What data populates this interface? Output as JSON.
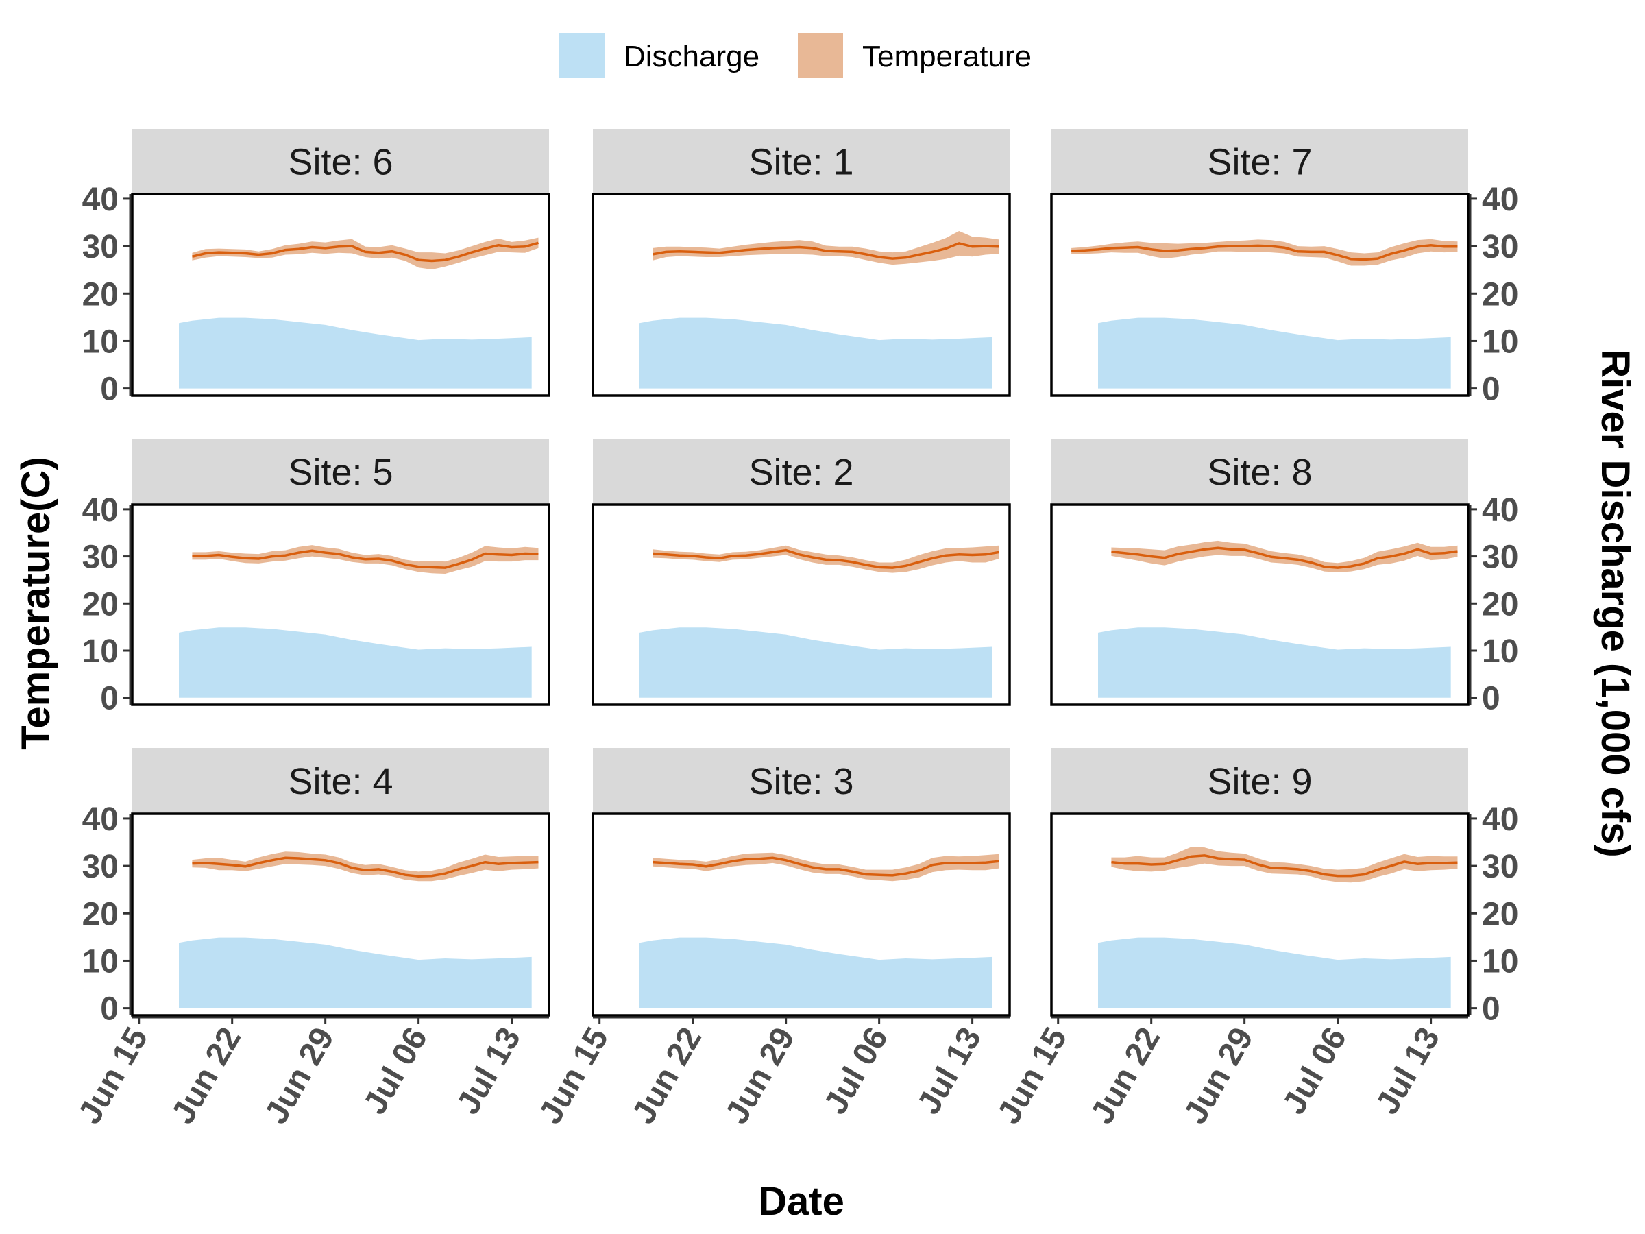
{
  "colors": {
    "discharge_fill": "#bde0f4",
    "temperature_line": "#d95f0e",
    "temperature_band": "#e8b896",
    "strip_background": "#d9d9d9",
    "panel_border": "#000000",
    "tick_text": "#4d4d4d"
  },
  "legend": {
    "placement": "top",
    "items": [
      {
        "label": "Discharge",
        "color": "#bde0f4"
      },
      {
        "label": "Temperature",
        "color": "#e8b896"
      }
    ]
  },
  "chart_data": {
    "type": "area",
    "layout": "faceted 3x3, shared x axis, dual y axes",
    "xlabel": "Date",
    "ylabel_left": "Temperature(C)",
    "ylabel_right": "River Discharge (1,000 cfs)",
    "x_ticks": [
      "Jun 15",
      "Jun 22",
      "Jun 29",
      "Jul 06",
      "Jul 13"
    ],
    "x_tick_values": [
      0,
      7,
      14,
      21,
      28
    ],
    "x_range_days_from_jun15": [
      -0.5,
      30.8
    ],
    "y_ticks": [
      0,
      10,
      20,
      30,
      40
    ],
    "ylim": [
      -1.5,
      41
    ],
    "grid": false,
    "discharge": {
      "name": "Discharge",
      "x": [
        3,
        4,
        6,
        8,
        10,
        12,
        14,
        16,
        18,
        20,
        21,
        23,
        25,
        27,
        29.5
      ],
      "values": [
        13.8,
        14.3,
        14.9,
        14.9,
        14.6,
        14.0,
        13.4,
        12.3,
        11.4,
        10.6,
        10.2,
        10.5,
        10.3,
        10.5,
        10.8
      ]
    },
    "panels": [
      {
        "site": "Site: 6",
        "temperature": {
          "name": "Temperature",
          "x": [
            4,
            5,
            6,
            7,
            8,
            9,
            10,
            11,
            12,
            13,
            14,
            15,
            16,
            17,
            18,
            19,
            20,
            21,
            22,
            23,
            24,
            25,
            26,
            27,
            28,
            29,
            30
          ],
          "values": [
            27.8,
            28.5,
            28.7,
            28.6,
            28.5,
            28.2,
            28.5,
            29.2,
            29.4,
            29.8,
            29.6,
            29.9,
            30.0,
            28.8,
            28.6,
            28.9,
            28.2,
            27.1,
            26.9,
            27.1,
            27.8,
            28.7,
            29.5,
            30.2,
            29.8,
            29.9,
            30.7
          ],
          "band": [
            0.8,
            0.9,
            0.8,
            0.8,
            0.8,
            0.7,
            0.9,
            1.0,
            1.1,
            1.2,
            1.2,
            1.3,
            1.5,
            1.1,
            1.2,
            1.3,
            1.3,
            1.6,
            1.8,
            1.4,
            1.3,
            1.3,
            1.4,
            1.4,
            1.1,
            1.3,
            1.1
          ]
        }
      },
      {
        "site": "Site: 1",
        "temperature": {
          "name": "Temperature",
          "x": [
            4,
            5,
            6,
            7,
            8,
            9,
            10,
            11,
            12,
            13,
            14,
            15,
            16,
            17,
            18,
            19,
            20,
            21,
            22,
            23,
            24,
            25,
            26,
            27,
            28,
            29,
            30
          ],
          "values": [
            28.3,
            28.8,
            28.9,
            28.8,
            28.7,
            28.6,
            28.9,
            29.2,
            29.4,
            29.6,
            29.7,
            29.8,
            29.6,
            29.0,
            28.9,
            28.8,
            28.3,
            27.7,
            27.4,
            27.6,
            28.2,
            28.8,
            29.5,
            30.6,
            29.9,
            30.0,
            29.9
          ],
          "band": [
            1.3,
            1.1,
            1.0,
            1.0,
            1.0,
            0.9,
            1.0,
            1.1,
            1.2,
            1.3,
            1.4,
            1.5,
            1.4,
            1.1,
            1.0,
            1.1,
            1.2,
            1.2,
            1.3,
            1.3,
            1.6,
            1.9,
            2.2,
            2.6,
            2.1,
            1.8,
            1.5
          ]
        }
      },
      {
        "site": "Site: 7",
        "temperature": {
          "name": "Temperature",
          "x": [
            1,
            2,
            3,
            4,
            5,
            6,
            7,
            8,
            9,
            10,
            11,
            12,
            13,
            14,
            15,
            16,
            17,
            18,
            19,
            20,
            21,
            22,
            23,
            24,
            25,
            26,
            27,
            28,
            29,
            30
          ],
          "values": [
            29.0,
            29.1,
            29.3,
            29.6,
            29.7,
            29.8,
            29.3,
            29.0,
            29.1,
            29.4,
            29.6,
            29.9,
            30.0,
            30.0,
            30.1,
            30.0,
            29.7,
            28.9,
            28.8,
            28.8,
            28.1,
            27.3,
            27.2,
            27.4,
            28.4,
            29.1,
            29.9,
            30.2,
            29.9,
            29.9
          ],
          "band": [
            0.6,
            0.7,
            0.8,
            0.9,
            1.1,
            1.2,
            1.4,
            1.6,
            1.4,
            1.2,
            1.1,
            1.0,
            1.1,
            1.2,
            1.3,
            1.3,
            1.2,
            1.1,
            1.1,
            1.2,
            1.3,
            1.4,
            1.3,
            1.3,
            1.4,
            1.5,
            1.4,
            1.3,
            1.2,
            1.1
          ]
        }
      },
      {
        "site": "Site: 5",
        "temperature": {
          "name": "Temperature",
          "x": [
            4,
            5,
            6,
            7,
            8,
            9,
            10,
            11,
            12,
            13,
            14,
            15,
            16,
            17,
            18,
            19,
            20,
            21,
            22,
            23,
            24,
            25,
            26,
            27,
            28,
            29,
            30
          ],
          "values": [
            30.1,
            30.1,
            30.3,
            29.9,
            29.6,
            29.5,
            30.0,
            30.2,
            30.8,
            31.2,
            30.8,
            30.5,
            29.8,
            29.4,
            29.5,
            29.1,
            28.3,
            27.8,
            27.7,
            27.6,
            28.4,
            29.3,
            30.6,
            30.4,
            30.3,
            30.6,
            30.5
          ],
          "band": [
            0.8,
            0.8,
            0.8,
            0.9,
            1.0,
            1.0,
            1.1,
            1.1,
            1.2,
            1.2,
            1.1,
            1.1,
            1.0,
            0.9,
            1.0,
            1.0,
            1.0,
            1.1,
            1.3,
            1.3,
            1.3,
            1.5,
            1.6,
            1.5,
            1.4,
            1.4,
            1.3
          ]
        }
      },
      {
        "site": "Site: 2",
        "temperature": {
          "name": "Temperature",
          "x": [
            4,
            5,
            6,
            7,
            8,
            9,
            10,
            11,
            12,
            13,
            14,
            15,
            16,
            17,
            18,
            19,
            20,
            21,
            22,
            23,
            24,
            25,
            26,
            27,
            28,
            29,
            30
          ],
          "values": [
            30.6,
            30.4,
            30.2,
            30.1,
            29.8,
            29.6,
            30.1,
            30.2,
            30.5,
            30.9,
            31.3,
            30.4,
            29.8,
            29.3,
            29.2,
            28.8,
            28.2,
            27.7,
            27.6,
            28.0,
            28.8,
            29.6,
            30.2,
            30.4,
            30.3,
            30.4,
            30.9
          ],
          "band": [
            0.9,
            0.8,
            0.8,
            0.8,
            0.8,
            0.8,
            0.8,
            0.8,
            0.8,
            0.9,
            1.0,
            1.0,
            1.1,
            1.1,
            1.0,
            1.0,
            1.0,
            1.0,
            1.1,
            1.3,
            1.5,
            1.5,
            1.5,
            1.4,
            1.6,
            1.7,
            1.4
          ]
        }
      },
      {
        "site": "Site: 8",
        "temperature": {
          "name": "Temperature",
          "x": [
            4,
            5,
            6,
            7,
            8,
            9,
            10,
            11,
            12,
            13,
            14,
            15,
            16,
            17,
            18,
            19,
            20,
            21,
            22,
            23,
            24,
            25,
            26,
            27,
            28,
            29,
            30
          ],
          "values": [
            31.0,
            30.7,
            30.4,
            30.0,
            29.7,
            30.5,
            31.0,
            31.5,
            31.8,
            31.5,
            31.4,
            30.7,
            29.9,
            29.6,
            29.3,
            28.7,
            27.8,
            27.6,
            27.9,
            28.5,
            29.6,
            30.0,
            30.6,
            31.5,
            30.6,
            30.7,
            31.1
          ],
          "band": [
            0.9,
            1.1,
            1.3,
            1.5,
            1.6,
            1.6,
            1.5,
            1.5,
            1.5,
            1.4,
            1.3,
            1.2,
            1.2,
            1.1,
            1.1,
            1.1,
            1.0,
            1.0,
            1.1,
            1.2,
            1.4,
            1.5,
            1.5,
            1.4,
            1.4,
            1.3,
            1.2
          ]
        }
      },
      {
        "site": "Site: 4",
        "temperature": {
          "name": "Temperature",
          "x": [
            4,
            5,
            6,
            7,
            8,
            9,
            10,
            11,
            12,
            13,
            14,
            15,
            16,
            17,
            18,
            19,
            20,
            21,
            22,
            23,
            24,
            25,
            26,
            27,
            28,
            29,
            30
          ],
          "values": [
            30.5,
            30.6,
            30.4,
            30.2,
            29.9,
            30.6,
            31.2,
            31.7,
            31.6,
            31.4,
            31.2,
            30.6,
            29.6,
            29.1,
            29.3,
            28.8,
            28.1,
            27.8,
            27.9,
            28.4,
            29.3,
            30.0,
            30.8,
            30.4,
            30.6,
            30.7,
            30.8
          ],
          "band": [
            0.8,
            1.0,
            1.3,
            1.1,
            1.0,
            1.2,
            1.3,
            1.3,
            1.3,
            1.2,
            1.2,
            1.2,
            1.1,
            1.1,
            1.1,
            1.0,
            1.0,
            1.0,
            1.1,
            1.2,
            1.4,
            1.5,
            1.6,
            1.5,
            1.4,
            1.4,
            1.3
          ]
        }
      },
      {
        "site": "Site: 3",
        "temperature": {
          "name": "Temperature",
          "x": [
            4,
            5,
            6,
            7,
            8,
            9,
            10,
            11,
            12,
            13,
            14,
            15,
            16,
            17,
            18,
            19,
            20,
            21,
            22,
            23,
            24,
            25,
            26,
            27,
            28,
            29,
            30
          ],
          "values": [
            30.8,
            30.6,
            30.4,
            30.3,
            29.9,
            30.4,
            31.0,
            31.4,
            31.5,
            31.7,
            31.2,
            30.4,
            29.7,
            29.3,
            29.3,
            28.8,
            28.2,
            28.1,
            28.0,
            28.4,
            29.0,
            30.2,
            30.6,
            30.6,
            30.6,
            30.7,
            31.0
          ],
          "band": [
            0.9,
            0.9,
            0.9,
            0.9,
            1.0,
            1.0,
            1.1,
            1.2,
            1.2,
            1.1,
            1.1,
            1.1,
            1.1,
            1.0,
            1.0,
            1.0,
            1.0,
            1.1,
            1.2,
            1.3,
            1.4,
            1.5,
            1.5,
            1.4,
            1.5,
            1.6,
            1.5
          ]
        }
      },
      {
        "site": "Site: 9",
        "temperature": {
          "name": "Temperature",
          "x": [
            4,
            5,
            6,
            7,
            8,
            9,
            10,
            11,
            12,
            13,
            14,
            15,
            16,
            17,
            18,
            19,
            20,
            21,
            22,
            23,
            24,
            25,
            26,
            27,
            28,
            29,
            30
          ],
          "values": [
            30.8,
            30.5,
            30.5,
            30.3,
            30.4,
            31.2,
            32.0,
            32.2,
            31.6,
            31.4,
            31.3,
            30.3,
            29.6,
            29.5,
            29.3,
            28.9,
            28.2,
            27.9,
            27.9,
            28.2,
            29.2,
            30.0,
            30.9,
            30.4,
            30.6,
            30.6,
            30.7
          ],
          "band": [
            1.0,
            1.3,
            1.6,
            1.5,
            1.4,
            1.6,
            2.0,
            1.7,
            1.5,
            1.4,
            1.3,
            1.3,
            1.2,
            1.2,
            1.1,
            1.1,
            1.2,
            1.3,
            1.4,
            1.4,
            1.5,
            1.6,
            1.6,
            1.5,
            1.5,
            1.4,
            1.3
          ]
        }
      }
    ]
  }
}
